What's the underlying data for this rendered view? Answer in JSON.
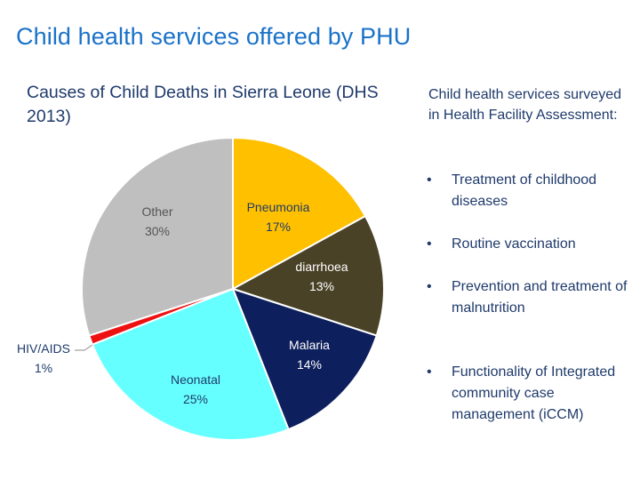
{
  "page_title": "Child health services offered by PHU",
  "chart_data": {
    "type": "pie",
    "title": "Causes of Child Deaths in Sierra Leone (DHS 2013)",
    "slices": [
      {
        "label": "Pneumonia",
        "value": 17,
        "value_label": "17%",
        "color": "#ffc000"
      },
      {
        "label": "diarrhoea",
        "value": 13,
        "value_label": "13%",
        "color": "#4a4227"
      },
      {
        "label": "Malaria",
        "value": 14,
        "value_label": "14%",
        "color": "#0d1f5c"
      },
      {
        "label": "Neonatal",
        "value": 25,
        "value_label": "25%",
        "color": "#66ffff"
      },
      {
        "label": "HIV/AIDS",
        "value": 1,
        "value_label": "1%",
        "color": "#ee1111"
      },
      {
        "label": "Other",
        "value": 30,
        "value_label": "30%",
        "color": "#bfbfbf"
      }
    ]
  },
  "services_panel": {
    "title": "Child health services surveyed in Health Facility Assessment:",
    "bullet": "•",
    "items": [
      "Treatment of childhood diseases",
      "Routine vaccination",
      "Prevention and treatment of malnutrition",
      "Functionality of Integrated community case management (iCCM)"
    ]
  }
}
